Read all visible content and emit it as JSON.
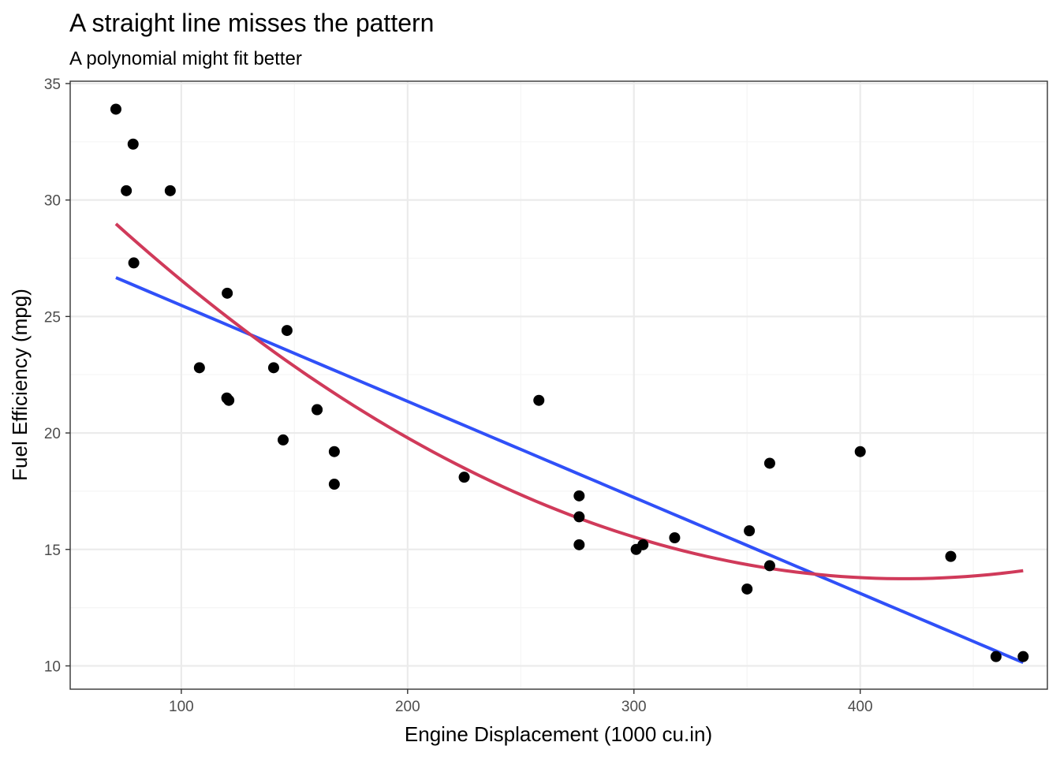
{
  "chart_data": {
    "type": "scatter",
    "title": "A straight line misses the pattern",
    "subtitle": "A polynomial might fit better",
    "xlabel": "Engine Displacement (1000 cu.in)",
    "ylabel": "Fuel Efficiency (mpg)",
    "xlim": [
      50.9,
      482.7
    ],
    "ylim": [
      9.0,
      35.1
    ],
    "xticks": [
      100,
      200,
      300,
      400
    ],
    "yticks": [
      10,
      15,
      20,
      25,
      30,
      35
    ],
    "grid": true,
    "points": [
      {
        "x": 71.1,
        "y": 33.9
      },
      {
        "x": 75.7,
        "y": 30.4
      },
      {
        "x": 78.7,
        "y": 32.4
      },
      {
        "x": 79.0,
        "y": 27.3
      },
      {
        "x": 95.1,
        "y": 30.4
      },
      {
        "x": 108.0,
        "y": 22.8
      },
      {
        "x": 120.1,
        "y": 21.5
      },
      {
        "x": 120.3,
        "y": 26.0
      },
      {
        "x": 121.0,
        "y": 21.4
      },
      {
        "x": 140.8,
        "y": 22.8
      },
      {
        "x": 145.0,
        "y": 19.7
      },
      {
        "x": 146.7,
        "y": 24.4
      },
      {
        "x": 160.0,
        "y": 21.0
      },
      {
        "x": 160.0,
        "y": 21.0
      },
      {
        "x": 167.6,
        "y": 19.2
      },
      {
        "x": 167.6,
        "y": 17.8
      },
      {
        "x": 225.0,
        "y": 18.1
      },
      {
        "x": 258.0,
        "y": 21.4
      },
      {
        "x": 275.8,
        "y": 16.4
      },
      {
        "x": 275.8,
        "y": 17.3
      },
      {
        "x": 275.8,
        "y": 15.2
      },
      {
        "x": 301.0,
        "y": 15.0
      },
      {
        "x": 304.0,
        "y": 15.2
      },
      {
        "x": 318.0,
        "y": 15.5
      },
      {
        "x": 350.0,
        "y": 13.3
      },
      {
        "x": 351.0,
        "y": 15.8
      },
      {
        "x": 360.0,
        "y": 14.3
      },
      {
        "x": 360.0,
        "y": 18.7
      },
      {
        "x": 400.0,
        "y": 19.2
      },
      {
        "x": 440.0,
        "y": 14.7
      },
      {
        "x": 460.0,
        "y": 10.4
      },
      {
        "x": 472.0,
        "y": 10.4
      }
    ],
    "series": [
      {
        "name": "linear fit",
        "color": "#3050f8",
        "kind": "linear",
        "intercept": 29.6,
        "slope": -0.04122,
        "x_range": [
          71.1,
          472.0
        ]
      },
      {
        "name": "polynomial fit",
        "color": "#d03a5a",
        "kind": "quadratic",
        "coefficients": [
          35.83,
          -0.1053,
          0.0001255
        ],
        "x_range": [
          71.1,
          472.0
        ]
      }
    ],
    "colors": {
      "points": "#000000",
      "grid_major": "#ebebeb",
      "grid_minor": "#f5f5f5",
      "panel_border": "#333333"
    }
  }
}
